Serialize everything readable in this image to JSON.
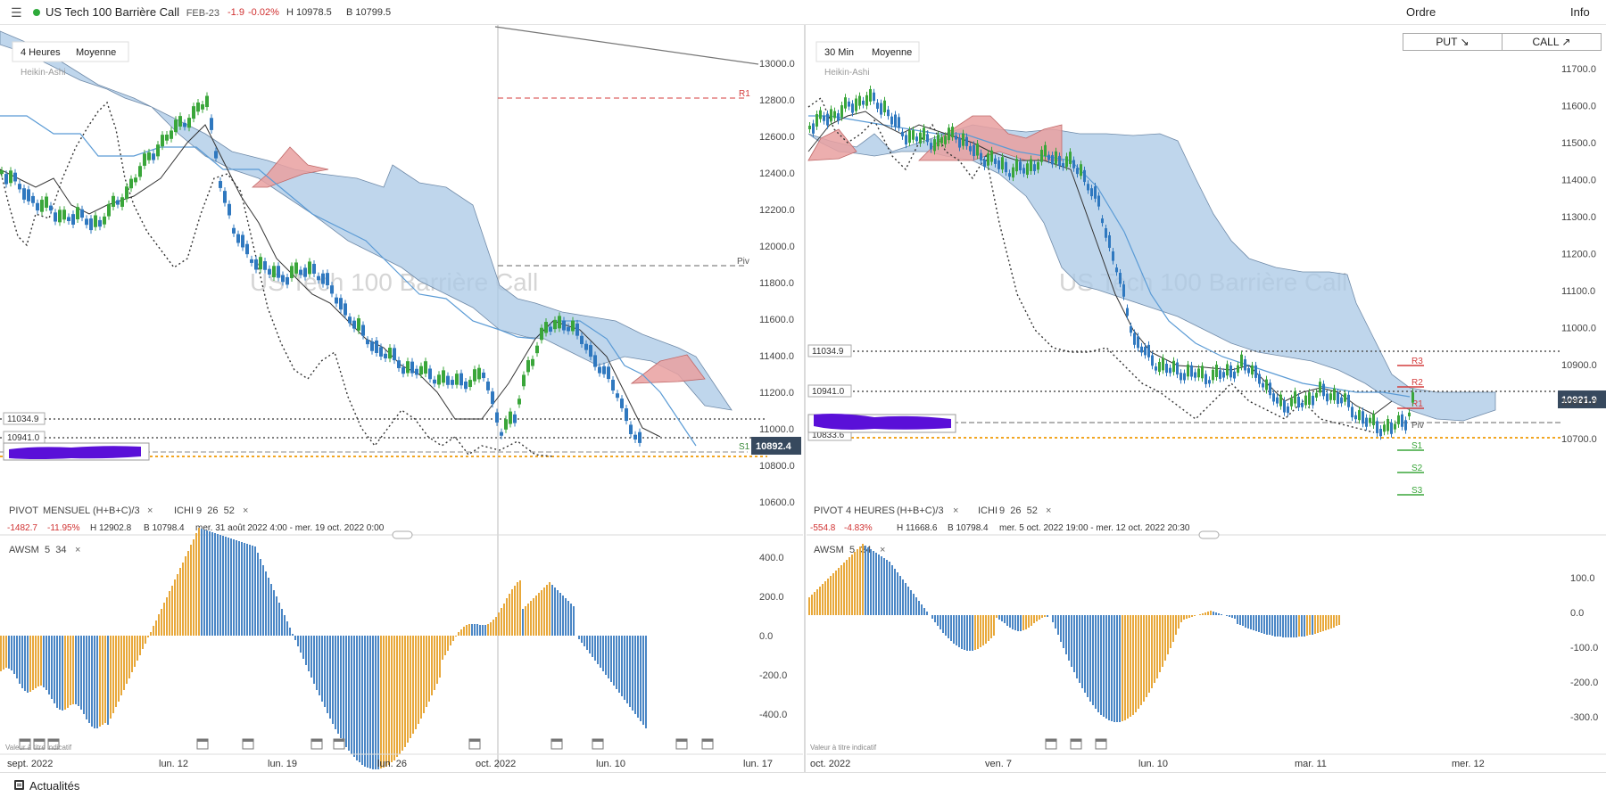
{
  "header": {
    "menu_icon": "hamburger-icon",
    "title": "US Tech 100 Barrière Call",
    "expiry": "FEB-23",
    "change": "-1.9",
    "change_pct": "-0.02%",
    "high": "H 10978.5",
    "low": "B 10799.5",
    "order_label": "Ordre",
    "info_label": "Info"
  },
  "trade": {
    "put_label": "PUT ↘",
    "call_label": "CALL ↗"
  },
  "watermark": "US Tech 100 Barrière Call",
  "colors": {
    "candle_up": "#3aa63a",
    "candle_down": "#2f78bf",
    "cloud_bearish": "#a9c8e6",
    "cloud_bullish": "#e9a0a0",
    "pivot_support": "#f2a623",
    "pivot_resistance": "#d43d3d",
    "awsm_pos": "#e8a83a",
    "awsm_neg": "#4a86c5",
    "price_tag": "#37495e"
  },
  "left": {
    "timeframe": "4 Heures",
    "ma_label": "Moyenne",
    "chart_type": "Heikin-Ashi",
    "price_axis": [
      "13000.0",
      "12800.0",
      "12600.0",
      "12400.0",
      "12200.0",
      "12000.0",
      "11800.0",
      "11600.0",
      "11400.0",
      "11200.0",
      "11000.0",
      "10800.0",
      "10600.0"
    ],
    "levels": {
      "r1": "R1",
      "piv": "Piv",
      "s1": "S1"
    },
    "level_tag_1": "11034.9",
    "level_tag_2": "10941.0",
    "price_tag": "10892.4",
    "pivot_legend": {
      "pivot": "PIVOT",
      "period": "MENSUEL",
      "formula": "(H+B+C)/3",
      "close_x": "×",
      "ichi": "ICHI",
      "ichi_params": "9  26  52",
      "ichi_close": "×",
      "change": "-1482.7",
      "change_pct": "-11.95%",
      "high": "H 12902.8",
      "low": "B 10798.4",
      "range": "mer. 31 août 2022 4:00 - mer. 19 oct. 2022 0:00"
    },
    "awsm": {
      "label": "AWSM",
      "params": "5  34",
      "close_x": "×",
      "axis": [
        "400.0",
        "200.0",
        "0.0",
        "-200.0",
        "-400.0"
      ]
    },
    "indicative": "Valeur à titre indicatif",
    "time_axis": [
      "sept. 2022",
      "lun. 12",
      "lun. 19",
      "lun. 26",
      "oct. 2022",
      "lun. 10",
      "lun. 17"
    ]
  },
  "right": {
    "timeframe": "30 Min",
    "ma_label": "Moyenne",
    "chart_type": "Heikin-Ashi",
    "price_axis": [
      "11700.0",
      "11600.0",
      "11500.0",
      "11400.0",
      "11300.0",
      "11200.0",
      "11100.0",
      "11000.0",
      "10900.0",
      "10800.0",
      "10700.0"
    ],
    "levels": {
      "r3": "R3",
      "r2": "R2",
      "r1": "R1",
      "piv": "Piv",
      "s1": "S1",
      "s2": "S2",
      "s3": "S3"
    },
    "level_tag_1": "11034.9",
    "level_tag_2": "10941.0",
    "level_tag_3": "10833.6",
    "price_tag": "10921.9",
    "pivot_legend": {
      "pivot": "PIVOT",
      "period": "4 HEURES",
      "formula": "(H+B+C)/3",
      "close_x": "×",
      "ichi": "ICHI",
      "ichi_params": "9  26  52",
      "ichi_close": "×",
      "change": "-554.8",
      "change_pct": "-4.83%",
      "high": "H 11668.6",
      "low": "B 10798.4",
      "range": "mer. 5 oct. 2022 19:00 - mer. 12 oct. 2022 20:30"
    },
    "awsm": {
      "label": "AWSM",
      "params": "5  34",
      "close_x": "×",
      "axis": [
        "100.0",
        "0.0",
        "-100.0",
        "-200.0",
        "-300.0"
      ]
    },
    "indicative": "Valeur à titre indicatif",
    "time_axis": [
      "oct. 2022",
      "ven. 7",
      "lun. 10",
      "mar. 11",
      "mer. 12"
    ]
  },
  "footer": {
    "news_label": "Actualités"
  }
}
